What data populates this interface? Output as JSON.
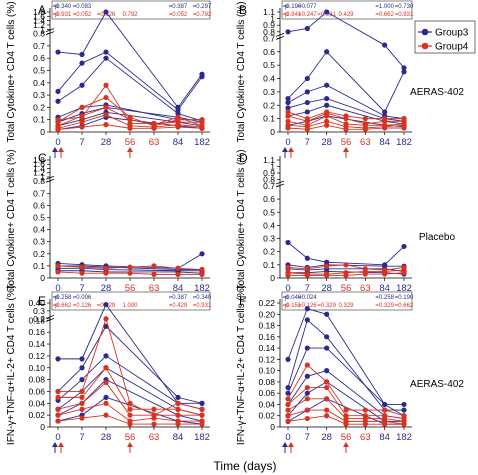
{
  "figure": {
    "xlabel": "Time (days)",
    "legend": [
      {
        "name": "Group3",
        "color": "#2b2b8f"
      },
      {
        "name": "Group4",
        "color": "#d9321f"
      }
    ],
    "side_labels": [
      "AERAS-402",
      "Placebo",
      "AERAS-402"
    ]
  },
  "chart_data": [
    {
      "panel": "A",
      "type": "line",
      "ylabel": "Total Cytokine+ CD4 T cells (%)",
      "x_ticks": [
        "0",
        "7",
        "28",
        "56",
        "63",
        "84",
        "182"
      ],
      "y_ticks": [
        "0",
        "0.1",
        "0.2",
        "0.3",
        "0.4",
        "0.5",
        "0.6",
        "0.7",
        "0.8",
        "1",
        "1.2",
        "1.4",
        "1.6",
        "1.8"
      ],
      "y_axis": "broken: 0-0.8 linear, 0.8-1.8 compressed",
      "p_table": {
        "row1": {
          "label": "p",
          "values": [
            "=0.340",
            "=0.083",
            "",
            "",
            "",
            "=0.387",
            "=0.297"
          ]
        },
        "row2": {
          "label": "p",
          "values": [
            "=0.931",
            "=0.052",
            "=0.126",
            "0.792",
            "",
            "=0.052",
            "=0.792"
          ]
        }
      },
      "arrows": [
        {
          "x": "0",
          "color": "#2b2b8f"
        },
        {
          "x": "0",
          "color": "#d9321f"
        },
        {
          "x": "56",
          "color": "#d9321f"
        }
      ],
      "series": [
        {
          "group": "Group3",
          "values": [
            0.65,
            0.63,
            1.8,
            null,
            null,
            0.2,
            0.47
          ]
        },
        {
          "group": "Group3",
          "values": [
            0.33,
            0.56,
            0.65,
            null,
            null,
            0.18,
            0.45
          ]
        },
        {
          "group": "Group3",
          "values": [
            0.25,
            0.38,
            0.6,
            null,
            null,
            0.15,
            0.09
          ]
        },
        {
          "group": "Group3",
          "values": [
            0.12,
            0.2,
            0.22,
            null,
            null,
            0.1,
            0.1
          ]
        },
        {
          "group": "Group3",
          "values": [
            0.08,
            0.15,
            0.2,
            null,
            null,
            0.12,
            0.08
          ]
        },
        {
          "group": "Group3",
          "values": [
            0.05,
            0.1,
            0.16,
            null,
            null,
            0.08,
            0.05
          ]
        },
        {
          "group": "Group3",
          "values": [
            0.02,
            0.05,
            0.12,
            null,
            null,
            0.05,
            0.03
          ]
        },
        {
          "group": "Group4",
          "values": [
            0.1,
            0.12,
            0.38,
            0.07,
            0.07,
            0.08,
            0.08
          ]
        },
        {
          "group": "Group4",
          "values": [
            0.08,
            0.2,
            0.28,
            0.12,
            0.05,
            0.1,
            0.1
          ]
        },
        {
          "group": "Group4",
          "values": [
            0.05,
            0.13,
            0.2,
            0.1,
            0.06,
            0.12,
            0.05
          ]
        },
        {
          "group": "Group4",
          "values": [
            0.03,
            0.08,
            0.14,
            0.05,
            0.04,
            0.06,
            0.04
          ]
        },
        {
          "group": "Group4",
          "values": [
            0.02,
            0.04,
            0.06,
            0.03,
            0.03,
            0.04,
            0.03
          ]
        }
      ]
    },
    {
      "panel": "B",
      "type": "line",
      "ylabel": "Total Cytokine+ CD4 T cells (%)",
      "x_ticks": [
        "0",
        "7",
        "28",
        "56",
        "63",
        "84",
        "182"
      ],
      "y_ticks": [
        "0",
        "0.1",
        "0.2",
        "0.3",
        "0.4",
        "0.5",
        "0.6",
        "0.7",
        "0.8",
        "0.9",
        "1",
        "1.1"
      ],
      "y_axis": "broken: 0-0.7 linear, 0.7-1.1 compressed",
      "p_table": {
        "row1": {
          "label": "p",
          "values": [
            "=0.190",
            "=0.077",
            "",
            "",
            "",
            "=1.000",
            "=0.730"
          ]
        },
        "row2": {
          "label": "p",
          "values": [
            "=0.841",
            "=0.247",
            "=0.931",
            "0.429",
            "",
            "=0.662",
            "=0.931"
          ]
        }
      },
      "arrows": [
        {
          "x": "0",
          "color": "#2b2b8f"
        },
        {
          "x": "0",
          "color": "#d9321f"
        },
        {
          "x": "56",
          "color": "#d9321f"
        }
      ],
      "series": [
        {
          "group": "Group3",
          "values": [
            0.8,
            0.85,
            1.1,
            null,
            null,
            0.65,
            0.48
          ]
        },
        {
          "group": "Group3",
          "values": [
            0.25,
            0.4,
            0.6,
            null,
            null,
            0.15,
            0.45
          ]
        },
        {
          "group": "Group3",
          "values": [
            0.22,
            0.3,
            0.35,
            null,
            null,
            0.12,
            0.1
          ]
        },
        {
          "group": "Group3",
          "values": [
            0.18,
            0.22,
            0.25,
            null,
            null,
            0.1,
            0.08
          ]
        },
        {
          "group": "Group3",
          "values": [
            0.12,
            0.15,
            0.2,
            null,
            null,
            0.08,
            0.06
          ]
        },
        {
          "group": "Group3",
          "values": [
            0.05,
            0.08,
            0.12,
            null,
            null,
            0.05,
            0.04
          ]
        },
        {
          "group": "Group4",
          "values": [
            0.15,
            0.1,
            0.15,
            0.12,
            0.1,
            0.1,
            0.1
          ]
        },
        {
          "group": "Group4",
          "values": [
            0.12,
            0.08,
            0.14,
            0.1,
            0.06,
            0.08,
            0.08
          ]
        },
        {
          "group": "Group4",
          "values": [
            0.08,
            0.05,
            0.12,
            0.06,
            0.05,
            0.05,
            0.06
          ]
        },
        {
          "group": "Group4",
          "values": [
            0.05,
            0.04,
            0.08,
            0.04,
            0.03,
            0.04,
            0.05
          ]
        },
        {
          "group": "Group4",
          "values": [
            0.03,
            0.02,
            0.05,
            0.02,
            0.02,
            0.03,
            0.03
          ]
        }
      ]
    },
    {
      "panel": "C",
      "type": "line",
      "ylabel": "Total Cytokine+ CD4 T cells (%)",
      "x_ticks": [
        "0",
        "7",
        "28",
        "56",
        "63",
        "84",
        "182"
      ],
      "y_ticks": [
        "0",
        "0.1",
        "0.2",
        "0.3",
        "0.4",
        "0.5",
        "0.6",
        "0.7",
        "0.8",
        "1",
        "1.2",
        "1.4",
        "1.6",
        "1.8"
      ],
      "y_axis": "broken: 0-0.8 linear, 0.8-1.8 compressed",
      "arrows": [],
      "series": [
        {
          "group": "Group3",
          "values": [
            0.12,
            0.11,
            0.1,
            null,
            null,
            0.08,
            0.2
          ]
        },
        {
          "group": "Group3",
          "values": [
            0.1,
            0.1,
            0.09,
            null,
            null,
            0.07,
            0.07
          ]
        },
        {
          "group": "Group3",
          "values": [
            0.08,
            0.08,
            0.07,
            null,
            null,
            0.06,
            0.06
          ]
        },
        {
          "group": "Group3",
          "values": [
            0.06,
            0.06,
            0.05,
            null,
            null,
            0.05,
            0.04
          ]
        },
        {
          "group": "Group4",
          "values": [
            0.1,
            0.09,
            0.08,
            0.09,
            0.1,
            0.08,
            0.07
          ]
        },
        {
          "group": "Group4",
          "values": [
            0.05,
            0.04,
            0.04,
            0.04,
            0.03,
            0.03,
            0.03
          ]
        }
      ]
    },
    {
      "panel": "D",
      "type": "line",
      "ylabel": "Total Cytokine+ CD4 T cells (%)",
      "x_ticks": [
        "0",
        "7",
        "28",
        "56",
        "63",
        "84",
        "182"
      ],
      "y_ticks": [
        "0",
        "0.1",
        "0.2",
        "0.3",
        "0.4",
        "0.5",
        "0.6",
        "0.7",
        "0.8",
        "0.9",
        "1",
        "1.1"
      ],
      "y_axis": "broken: 0-0.7 linear, 0.7-1.1 compressed",
      "arrows": [
        {
          "x": "56",
          "color": "#d9321f"
        }
      ],
      "series": [
        {
          "group": "Group3",
          "values": [
            0.27,
            0.15,
            0.12,
            null,
            null,
            0.1,
            0.24
          ]
        },
        {
          "group": "Group3",
          "values": [
            0.1,
            0.08,
            0.1,
            null,
            null,
            0.09,
            0.09
          ]
        },
        {
          "group": "Group3",
          "values": [
            0.07,
            0.06,
            0.07,
            null,
            null,
            0.07,
            0.05
          ]
        },
        {
          "group": "Group3",
          "values": [
            0.04,
            0.04,
            0.05,
            null,
            null,
            0.04,
            0.03
          ]
        },
        {
          "group": "Group4",
          "values": [
            0.08,
            0.07,
            0.09,
            0.1,
            0.07,
            0.06,
            0.08
          ]
        },
        {
          "group": "Group4",
          "values": [
            0.04,
            0.03,
            0.03,
            0.04,
            0.05,
            0.05,
            0.06
          ]
        },
        {
          "group": "Group4",
          "values": [
            0.02,
            0.02,
            0.02,
            0.02,
            0.03,
            0.03,
            0.04
          ]
        }
      ]
    },
    {
      "panel": "E",
      "type": "line",
      "ylabel": "IFN-γ+TNF-α+IL-2+ CD4 T cells (%)",
      "x_ticks": [
        "0",
        "7",
        "28",
        "56",
        "63",
        "84",
        "182"
      ],
      "y_ticks": [
        "0",
        "0.02",
        "0.04",
        "0.06",
        "0.08",
        "0.10",
        "0.12",
        "0.14",
        "0.16",
        "0.18",
        "0.2",
        "0.3",
        "0.40"
      ],
      "y_axis": "broken: 0-0.18 linear, 0.18-0.40 compressed",
      "p_table": {
        "row1": {
          "label": "p",
          "values": [
            "=0.258",
            "=0.006",
            "",
            "",
            "",
            "=0.387",
            "=0.340"
          ]
        },
        "row2": {
          "label": "p",
          "values": [
            "=0.662",
            "=0.126",
            "=0.329",
            "1.000",
            "",
            "=0.429",
            "=0.931"
          ]
        }
      },
      "arrows": [
        {
          "x": "0",
          "color": "#2b2b8f"
        },
        {
          "x": "0",
          "color": "#d9321f"
        },
        {
          "x": "56",
          "color": "#d9321f"
        }
      ],
      "series": [
        {
          "group": "Group3",
          "values": [
            0.115,
            0.115,
            0.38,
            null,
            null,
            0.04,
            0.04
          ]
        },
        {
          "group": "Group3",
          "values": [
            0.06,
            0.1,
            0.17,
            null,
            null,
            0.05,
            0.04
          ]
        },
        {
          "group": "Group3",
          "values": [
            0.045,
            0.08,
            0.12,
            null,
            null,
            0.04,
            0.03
          ]
        },
        {
          "group": "Group3",
          "values": [
            0.03,
            0.06,
            0.1,
            null,
            null,
            0.03,
            0.02
          ]
        },
        {
          "group": "Group3",
          "values": [
            0.02,
            0.04,
            0.08,
            null,
            null,
            0.02,
            0.01
          ]
        },
        {
          "group": "Group3",
          "values": [
            0.01,
            0.02,
            0.05,
            null,
            null,
            0.01,
            0.005
          ]
        },
        {
          "group": "Group4",
          "values": [
            0.06,
            0.06,
            0.2,
            0.04,
            0.02,
            0.04,
            0.03
          ]
        },
        {
          "group": "Group4",
          "values": [
            0.05,
            0.05,
            0.1,
            0.03,
            0.03,
            0.03,
            0.02
          ]
        },
        {
          "group": "Group4",
          "values": [
            0.03,
            0.04,
            0.075,
            0.02,
            0.02,
            0.02,
            0.02
          ]
        },
        {
          "group": "Group4",
          "values": [
            0.02,
            0.03,
            0.04,
            0.01,
            0.015,
            0.01,
            0.01
          ]
        },
        {
          "group": "Group4",
          "values": [
            0.01,
            0.015,
            0.02,
            0.005,
            0.005,
            0.005,
            0.005
          ]
        }
      ]
    },
    {
      "panel": "F",
      "type": "line",
      "ylabel": "IFN-γ+TNF-α+IL-2+ CD4 T cells (%)",
      "x_ticks": [
        "0",
        "7",
        "28",
        "56",
        "63",
        "84",
        "182"
      ],
      "y_ticks": [
        "0",
        "0.02",
        "0.04",
        "0.06",
        "0.08",
        "0.10",
        "0.12",
        "0.14",
        "0.16",
        "0.18",
        "0.20",
        "0.22"
      ],
      "p_table": {
        "row1": {
          "label": "p",
          "values": [
            "=0.040",
            "=0.024",
            "",
            "",
            "",
            "=0.258",
            "=0.190"
          ]
        },
        "row2": {
          "label": "p",
          "values": [
            "=0.151",
            "=0.126",
            "=0.329",
            "0.329",
            "",
            "=0.329",
            "=0.662"
          ]
        }
      },
      "arrows": [
        {
          "x": "0",
          "color": "#2b2b8f"
        },
        {
          "x": "0",
          "color": "#d9321f"
        },
        {
          "x": "56",
          "color": "#d9321f"
        }
      ],
      "series": [
        {
          "group": "Group3",
          "values": [
            0.12,
            0.21,
            0.2,
            null,
            null,
            0.04,
            0.04
          ]
        },
        {
          "group": "Group3",
          "values": [
            0.07,
            0.19,
            0.16,
            null,
            null,
            0.03,
            0.03
          ]
        },
        {
          "group": "Group3",
          "values": [
            0.06,
            0.14,
            0.14,
            null,
            null,
            0.04,
            0.02
          ]
        },
        {
          "group": "Group3",
          "values": [
            0.04,
            0.09,
            0.1,
            null,
            null,
            0.02,
            0.015
          ]
        },
        {
          "group": "Group3",
          "values": [
            0.02,
            0.06,
            0.08,
            null,
            null,
            0.01,
            0.01
          ]
        },
        {
          "group": "Group3",
          "values": [
            0.01,
            0.03,
            0.05,
            null,
            null,
            0.005,
            0.005
          ]
        },
        {
          "group": "Group4",
          "values": [
            0.05,
            0.11,
            0.08,
            0.03,
            0.03,
            0.03,
            0.02
          ]
        },
        {
          "group": "Group4",
          "values": [
            0.04,
            0.07,
            0.07,
            0.02,
            0.02,
            0.02,
            0.015
          ]
        },
        {
          "group": "Group4",
          "values": [
            0.03,
            0.05,
            0.05,
            0.015,
            0.015,
            0.015,
            0.01
          ]
        },
        {
          "group": "Group4",
          "values": [
            0.02,
            0.03,
            0.03,
            0.01,
            0.01,
            0.01,
            0.005
          ]
        },
        {
          "group": "Group4",
          "values": [
            0.01,
            0.015,
            0.02,
            0.005,
            0.005,
            0.005,
            0.005
          ]
        }
      ]
    }
  ]
}
